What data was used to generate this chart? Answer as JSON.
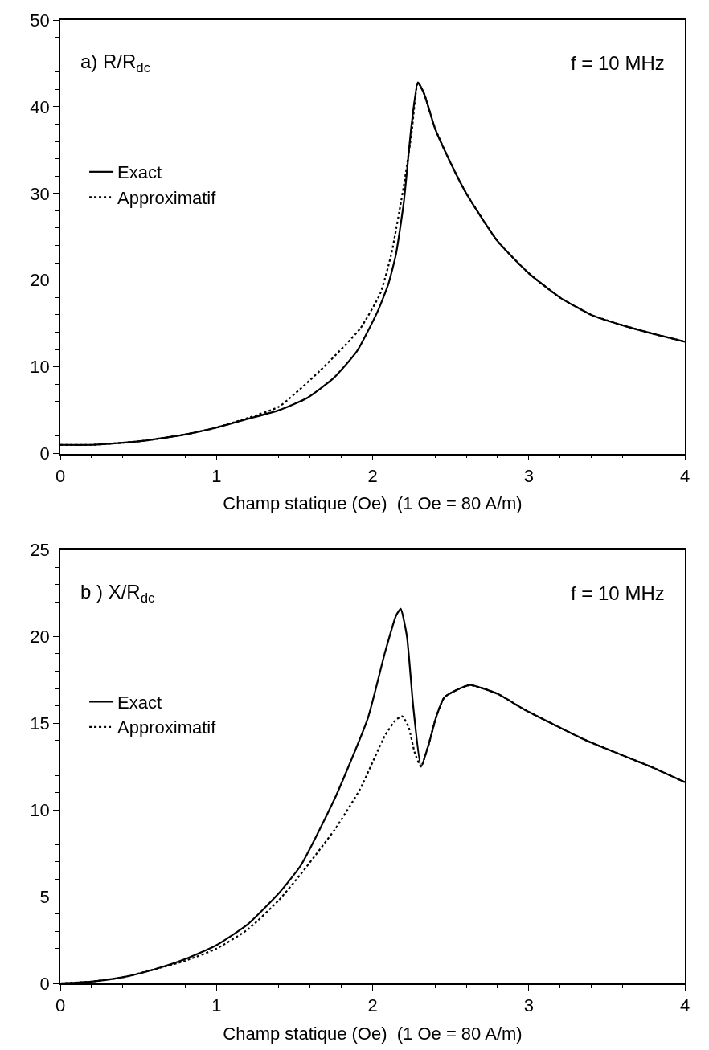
{
  "chart_data": [
    {
      "type": "line",
      "xlabel": "Champ statique (Oe)  (1 Oe = 80 A/m)",
      "annotations": [
        "a) R/R$_{dc}$",
        "f = 10 MHz"
      ],
      "xlim": [
        0,
        4
      ],
      "xticks": [
        0,
        1,
        2,
        3,
        4
      ],
      "ylim": [
        0,
        50
      ],
      "yticks": [
        0,
        10,
        20,
        30,
        40,
        50
      ],
      "legend": "left",
      "series": [
        {
          "name": "Exact",
          "color": "#000000",
          "line_style": "solid",
          "x": [
            0,
            0.2,
            0.5,
            0.8,
            1.0,
            1.2,
            1.4,
            1.58,
            1.75,
            1.9,
            2.03,
            2.1,
            2.15,
            2.2,
            2.25,
            2.29,
            2.33,
            2.4,
            2.5,
            2.6,
            2.8,
            3.0,
            3.2,
            3.4,
            3.6,
            3.8,
            4.0
          ],
          "values": [
            1.0,
            1.0,
            1.4,
            2.2,
            3.0,
            4.0,
            5.0,
            6.4,
            8.7,
            11.8,
            16.3,
            19.5,
            23,
            29,
            38,
            42.8,
            41.5,
            37.5,
            33.5,
            30,
            24.5,
            20.8,
            18.0,
            16.0,
            14.8,
            13.8,
            12.9
          ]
        },
        {
          "name": "Approximatif",
          "color": "#000000",
          "line_style": "dotted",
          "x": [
            0,
            0.2,
            0.5,
            0.8,
            1.0,
            1.2,
            1.4,
            1.66,
            1.92,
            2.05,
            2.12,
            2.2,
            2.25,
            2.29,
            2.33,
            2.4,
            2.5,
            2.6,
            2.8,
            3.0,
            3.2,
            3.4,
            3.6,
            3.8,
            4.0
          ],
          "values": [
            1.0,
            1.0,
            1.4,
            2.2,
            3.0,
            4.1,
            5.4,
            9.5,
            14.4,
            18.5,
            23,
            30.9,
            37,
            42.8,
            41.5,
            37.5,
            33.5,
            30,
            24.5,
            20.8,
            18.0,
            16.0,
            14.8,
            13.8,
            12.9
          ]
        }
      ]
    },
    {
      "type": "line",
      "xlabel": "Champ statique (Oe)  (1 Oe = 80 A/m)",
      "annotations": [
        "b ) X/R$_{dc}$",
        "f = 10 MHz"
      ],
      "xlim": [
        0,
        4
      ],
      "xticks": [
        0,
        1,
        2,
        3,
        4
      ],
      "ylim": [
        0,
        25
      ],
      "yticks": [
        0,
        5,
        10,
        15,
        20,
        25
      ],
      "legend": "left",
      "series": [
        {
          "name": "Exact",
          "color": "#000000",
          "line_style": "solid",
          "x": [
            0,
            0.2,
            0.4,
            0.6,
            0.8,
            1.0,
            1.2,
            1.4,
            1.54,
            1.76,
            1.97,
            2.08,
            2.15,
            2.18,
            2.22,
            2.26,
            2.31,
            2.36,
            2.405,
            2.46,
            2.62,
            2.8,
            2.97,
            3.37,
            3.78,
            4.0
          ],
          "values": [
            0,
            0.1,
            0.35,
            0.8,
            1.4,
            2.2,
            3.4,
            5.2,
            6.8,
            10.7,
            15.3,
            19.1,
            21.2,
            21.6,
            20,
            16,
            12.5,
            13.8,
            15.3,
            16.5,
            17.2,
            16.7,
            15.8,
            14.0,
            12.5,
            11.6
          ]
        },
        {
          "name": "Approximatif",
          "color": "#000000",
          "line_style": "dotted",
          "x": [
            0,
            0.2,
            0.4,
            0.6,
            0.8,
            1.0,
            1.2,
            1.4,
            1.54,
            1.76,
            1.92,
            2.08,
            2.15,
            2.19,
            2.23,
            2.27,
            2.31,
            2.36,
            2.405,
            2.46,
            2.62,
            2.8,
            2.97,
            3.37,
            3.78,
            4.0
          ],
          "values": [
            0,
            0.1,
            0.35,
            0.8,
            1.3,
            2.0,
            3.1,
            4.8,
            6.3,
            8.9,
            11.2,
            14.3,
            15.2,
            15.4,
            14.8,
            13.3,
            12.5,
            13.8,
            15.3,
            16.5,
            17.2,
            16.7,
            15.8,
            14.0,
            12.5,
            11.6
          ]
        }
      ]
    }
  ]
}
